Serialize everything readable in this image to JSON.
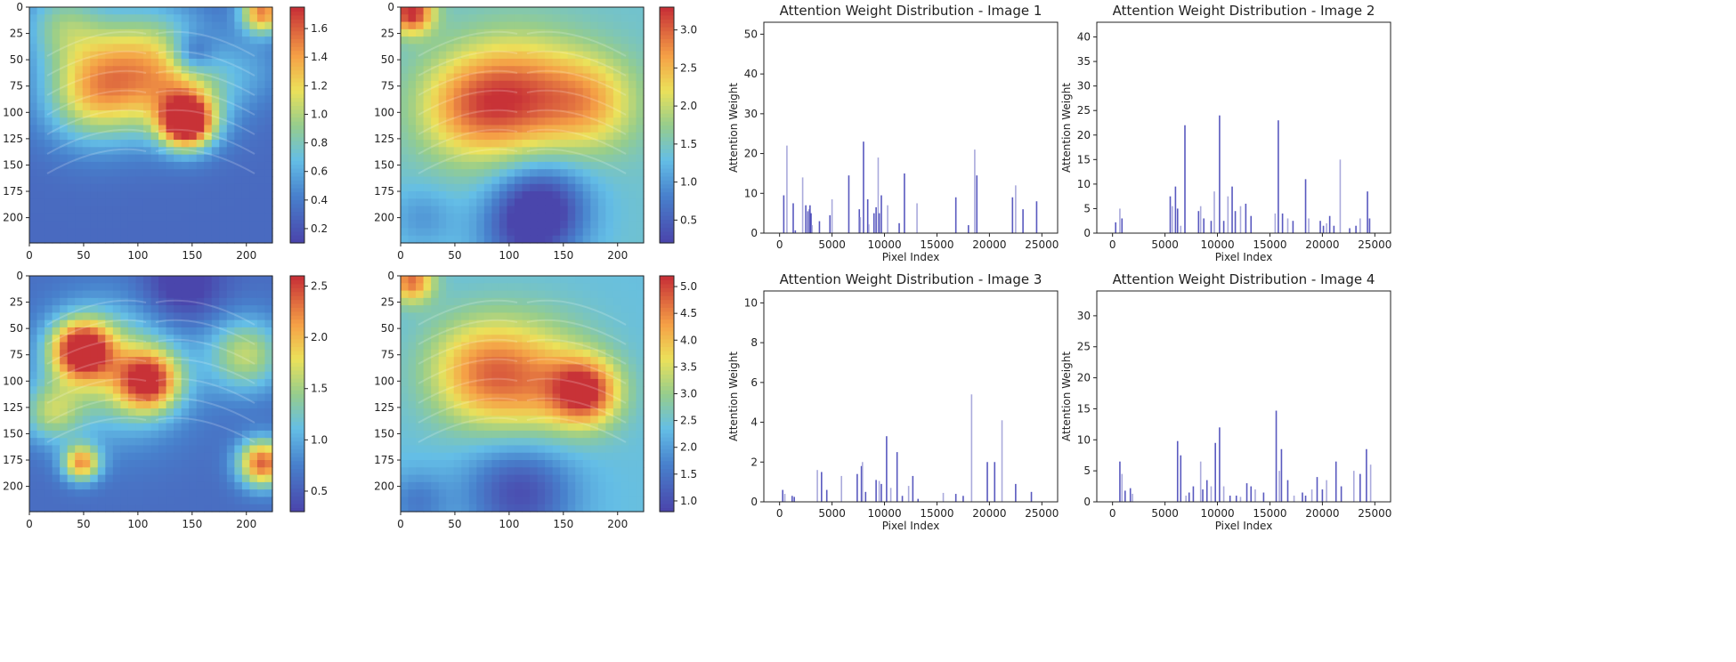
{
  "colors": {
    "cold": "#3b4cc0",
    "mid": "#dddddd",
    "hot": "#b40426",
    "bar_dark": "#3c3cb4",
    "bar_light": "#9b9bd6",
    "axis": "#222222"
  },
  "chart_data": [
    {
      "type": "heatmap",
      "panel": "heatmap-1",
      "xlim": [
        0,
        224
      ],
      "ylim": [
        224,
        0
      ],
      "xticks": [
        0,
        50,
        100,
        150,
        200
      ],
      "yticks": [
        0,
        25,
        50,
        75,
        100,
        125,
        150,
        175,
        200
      ],
      "colorbar": {
        "min": 0.1,
        "max": 1.75,
        "ticks": [
          "0.2",
          "0.4",
          "0.6",
          "0.8",
          "1.0",
          "1.2",
          "1.4",
          "1.6"
        ],
        "tick_values": [
          0.2,
          0.4,
          0.6,
          0.8,
          1.0,
          1.2,
          1.4,
          1.6
        ]
      },
      "base": 0.3,
      "hotspots": [
        {
          "x": 145,
          "y": 110,
          "v": 1.5,
          "s": 17
        },
        {
          "x": 145,
          "y": 85,
          "v": 0.55,
          "s": 30
        },
        {
          "x": 60,
          "y": 80,
          "v": 0.9,
          "s": 34
        },
        {
          "x": 108,
          "y": 50,
          "v": 0.75,
          "s": 38
        },
        {
          "x": 30,
          "y": 15,
          "v": 0.5,
          "s": 26
        },
        {
          "x": 215,
          "y": 5,
          "v": 1.2,
          "s": 14
        },
        {
          "x": 150,
          "y": 45,
          "v": -0.45,
          "s": 14
        },
        {
          "x": 205,
          "y": 60,
          "v": 0.2,
          "s": 24
        }
      ]
    },
    {
      "type": "heatmap",
      "panel": "heatmap-2",
      "xlim": [
        0,
        224
      ],
      "ylim": [
        224,
        0
      ],
      "xticks": [
        0,
        50,
        100,
        150,
        200
      ],
      "yticks": [
        0,
        25,
        50,
        75,
        100,
        125,
        150,
        175,
        200
      ],
      "colorbar": {
        "min": 0.2,
        "max": 3.3,
        "ticks": [
          "0.5",
          "1.0",
          "1.5",
          "2.0",
          "2.5",
          "3.0"
        ],
        "tick_values": [
          0.5,
          1.0,
          1.5,
          2.0,
          2.5,
          3.0
        ]
      },
      "base": 1.4,
      "hotspots": [
        {
          "x": 10,
          "y": 5,
          "v": 2.0,
          "s": 14
        },
        {
          "x": 110,
          "y": 85,
          "v": 1.4,
          "s": 40
        },
        {
          "x": 60,
          "y": 95,
          "v": 1.0,
          "s": 35
        },
        {
          "x": 175,
          "y": 90,
          "v": 1.0,
          "s": 32
        },
        {
          "x": 130,
          "y": 190,
          "v": -1.3,
          "s": 30
        },
        {
          "x": 110,
          "y": 220,
          "v": -0.6,
          "s": 30
        },
        {
          "x": 20,
          "y": 200,
          "v": -0.4,
          "s": 20
        }
      ]
    },
    {
      "type": "heatmap",
      "panel": "heatmap-3",
      "xlim": [
        0,
        224
      ],
      "ylim": [
        224,
        0
      ],
      "xticks": [
        0,
        50,
        100,
        150,
        200
      ],
      "yticks": [
        0,
        25,
        50,
        75,
        100,
        125,
        150,
        175,
        200
      ],
      "colorbar": {
        "min": 0.3,
        "max": 2.6,
        "ticks": [
          "0.5",
          "1.0",
          "1.5",
          "2.0",
          "2.5"
        ],
        "tick_values": [
          0.5,
          1.0,
          1.5,
          2.0,
          2.5
        ]
      },
      "base": 0.6,
      "hotspots": [
        {
          "x": 48,
          "y": 70,
          "v": 1.9,
          "s": 20
        },
        {
          "x": 110,
          "y": 100,
          "v": 1.6,
          "s": 20
        },
        {
          "x": 200,
          "y": 75,
          "v": 1.0,
          "s": 25
        },
        {
          "x": 80,
          "y": 90,
          "v": 0.9,
          "s": 45
        },
        {
          "x": 48,
          "y": 178,
          "v": 1.5,
          "s": 12
        },
        {
          "x": 215,
          "y": 178,
          "v": 1.8,
          "s": 16
        },
        {
          "x": 140,
          "y": 10,
          "v": -0.5,
          "s": 25
        },
        {
          "x": 20,
          "y": 130,
          "v": 0.8,
          "s": 20
        }
      ]
    },
    {
      "type": "heatmap",
      "panel": "heatmap-4",
      "xlim": [
        0,
        224
      ],
      "ylim": [
        224,
        0
      ],
      "xticks": [
        0,
        50,
        100,
        150,
        200
      ],
      "yticks": [
        0,
        25,
        50,
        75,
        100,
        125,
        150,
        175,
        200
      ],
      "colorbar": {
        "min": 0.8,
        "max": 5.2,
        "ticks": [
          "1.0",
          "1.5",
          "2.0",
          "2.5",
          "3.0",
          "3.5",
          "4.0",
          "4.5",
          "5.0"
        ],
        "tick_values": [
          1.0,
          1.5,
          2.0,
          2.5,
          3.0,
          3.5,
          4.0,
          4.5,
          5.0
        ]
      },
      "base": 2.4,
      "hotspots": [
        {
          "x": 170,
          "y": 110,
          "v": 2.6,
          "s": 22
        },
        {
          "x": 120,
          "y": 100,
          "v": 1.6,
          "s": 40
        },
        {
          "x": 70,
          "y": 90,
          "v": 1.5,
          "s": 35
        },
        {
          "x": 10,
          "y": 5,
          "v": 2.3,
          "s": 14
        },
        {
          "x": 110,
          "y": 205,
          "v": -1.5,
          "s": 35
        },
        {
          "x": 15,
          "y": 215,
          "v": -0.8,
          "s": 20
        }
      ]
    },
    {
      "type": "bar",
      "panel": "attention-1",
      "title": "Attention Weight Distribution - Image 1",
      "xlabel": "Pixel Index",
      "ylabel": "Attention Weight",
      "xlim": [
        -1500,
        26500
      ],
      "ylim": [
        0,
        53
      ],
      "xticks": [
        0,
        5000,
        10000,
        15000,
        20000,
        25000
      ],
      "yticks": [
        0,
        10,
        20,
        30,
        40,
        50
      ],
      "bars": [
        [
          400,
          9.5
        ],
        [
          700,
          22
        ],
        [
          1300,
          7.5
        ],
        [
          1500,
          0.7
        ],
        [
          2200,
          14
        ],
        [
          2500,
          7
        ],
        [
          2700,
          5.5
        ],
        [
          2800,
          6
        ],
        [
          2900,
          7
        ],
        [
          3000,
          5
        ],
        [
          3100,
          2
        ],
        [
          3800,
          3
        ],
        [
          4800,
          4.5
        ],
        [
          5000,
          8.5
        ],
        [
          6600,
          14.5
        ],
        [
          7600,
          6
        ],
        [
          7700,
          4
        ],
        [
          8000,
          23
        ],
        [
          8400,
          8.5
        ],
        [
          8500,
          2.2
        ],
        [
          9000,
          5
        ],
        [
          9200,
          6.5
        ],
        [
          9400,
          19
        ],
        [
          9500,
          5
        ],
        [
          9700,
          9.5
        ],
        [
          10300,
          7
        ],
        [
          11400,
          2.5
        ],
        [
          11900,
          15
        ],
        [
          13100,
          7.5
        ],
        [
          16800,
          9
        ],
        [
          18000,
          2
        ],
        [
          18600,
          21
        ],
        [
          18800,
          14.5
        ],
        [
          22200,
          9
        ],
        [
          22500,
          12
        ],
        [
          23200,
          6
        ],
        [
          24500,
          8
        ]
      ]
    },
    {
      "type": "bar",
      "panel": "attention-2",
      "title": "Attention Weight Distribution - Image 2",
      "xlabel": "Pixel Index",
      "ylabel": "Attention Weight",
      "xlim": [
        -1500,
        26500
      ],
      "ylim": [
        0,
        43
      ],
      "xticks": [
        0,
        5000,
        10000,
        15000,
        20000,
        25000
      ],
      "yticks": [
        0,
        5,
        10,
        15,
        20,
        25,
        30,
        35,
        40
      ],
      "bars": [
        [
          300,
          2.2
        ],
        [
          700,
          5
        ],
        [
          900,
          3
        ],
        [
          5500,
          7.5
        ],
        [
          5700,
          5.5
        ],
        [
          6000,
          9.5
        ],
        [
          6200,
          5
        ],
        [
          6500,
          1.5
        ],
        [
          6900,
          22
        ],
        [
          8200,
          4.5
        ],
        [
          8400,
          5.5
        ],
        [
          8700,
          3
        ],
        [
          9400,
          2.5
        ],
        [
          9700,
          8.5
        ],
        [
          10200,
          24
        ],
        [
          10600,
          2.5
        ],
        [
          11000,
          7.5
        ],
        [
          11400,
          9.5
        ],
        [
          11700,
          4.5
        ],
        [
          12200,
          5.5
        ],
        [
          12700,
          6
        ],
        [
          13200,
          3.5
        ],
        [
          15500,
          4
        ],
        [
          15800,
          23
        ],
        [
          16200,
          4
        ],
        [
          16700,
          3
        ],
        [
          17200,
          2.5
        ],
        [
          18400,
          11
        ],
        [
          18700,
          3
        ],
        [
          19800,
          2.5
        ],
        [
          20100,
          1.5
        ],
        [
          20400,
          2
        ],
        [
          20700,
          3.5
        ],
        [
          21100,
          1.5
        ],
        [
          21700,
          15
        ],
        [
          22600,
          1
        ],
        [
          23200,
          1.5
        ],
        [
          23600,
          3
        ],
        [
          24300,
          8.5
        ],
        [
          24500,
          3
        ]
      ]
    },
    {
      "type": "bar",
      "panel": "attention-3",
      "title": "Attention Weight Distribution - Image 3",
      "xlabel": "Pixel Index",
      "ylabel": "Attention Weight",
      "xlim": [
        -1500,
        26500
      ],
      "ylim": [
        0,
        10.6
      ],
      "xticks": [
        0,
        5000,
        10000,
        15000,
        20000,
        25000
      ],
      "yticks": [
        0,
        2,
        4,
        6,
        8,
        10
      ],
      "bars": [
        [
          300,
          0.6
        ],
        [
          500,
          0.4
        ],
        [
          1200,
          0.3
        ],
        [
          1400,
          0.25
        ],
        [
          3600,
          1.6
        ],
        [
          4000,
          1.5
        ],
        [
          4500,
          0.6
        ],
        [
          5900,
          1.3
        ],
        [
          7400,
          1.4
        ],
        [
          7800,
          1.8
        ],
        [
          7900,
          2
        ],
        [
          8200,
          0.5
        ],
        [
          9200,
          1.1
        ],
        [
          9500,
          1.05
        ],
        [
          9700,
          0.9
        ],
        [
          10200,
          3.3
        ],
        [
          10600,
          0.7
        ],
        [
          11200,
          2.5
        ],
        [
          11700,
          0.3
        ],
        [
          12300,
          0.8
        ],
        [
          12700,
          1.3
        ],
        [
          13200,
          0.15
        ],
        [
          15600,
          0.45
        ],
        [
          16800,
          0.4
        ],
        [
          17500,
          0.3
        ],
        [
          18300,
          5.4
        ],
        [
          19800,
          2
        ],
        [
          20500,
          2
        ],
        [
          21200,
          4.1
        ],
        [
          22500,
          0.9
        ],
        [
          24000,
          0.5
        ]
      ]
    },
    {
      "type": "bar",
      "panel": "attention-4",
      "title": "Attention Weight Distribution - Image 4",
      "xlabel": "Pixel Index",
      "ylabel": "Attention Weight",
      "xlim": [
        -1500,
        26500
      ],
      "ylim": [
        0,
        34
      ],
      "xticks": [
        0,
        5000,
        10000,
        15000,
        20000,
        25000
      ],
      "yticks": [
        0,
        5,
        10,
        15,
        20,
        25,
        30
      ],
      "bars": [
        [
          700,
          6.5
        ],
        [
          900,
          4.5
        ],
        [
          1200,
          1.8
        ],
        [
          1700,
          2.2
        ],
        [
          1900,
          1.3
        ],
        [
          6200,
          9.8
        ],
        [
          6500,
          7.5
        ],
        [
          7000,
          1
        ],
        [
          7300,
          1.5
        ],
        [
          7700,
          2.5
        ],
        [
          8400,
          6.5
        ],
        [
          8600,
          2
        ],
        [
          9000,
          3.5
        ],
        [
          9400,
          2.5
        ],
        [
          9800,
          9.5
        ],
        [
          10200,
          12
        ],
        [
          10600,
          2.5
        ],
        [
          11200,
          1
        ],
        [
          11800,
          1
        ],
        [
          12200,
          0.8
        ],
        [
          12800,
          3
        ],
        [
          13200,
          2.5
        ],
        [
          13600,
          2
        ],
        [
          14400,
          1.5
        ],
        [
          15600,
          14.7
        ],
        [
          15900,
          5
        ],
        [
          16100,
          8.5
        ],
        [
          16700,
          3.5
        ],
        [
          17300,
          1
        ],
        [
          18100,
          1.5
        ],
        [
          18400,
          1
        ],
        [
          19000,
          2
        ],
        [
          19500,
          4
        ],
        [
          20000,
          2
        ],
        [
          20400,
          3.5
        ],
        [
          21300,
          6.5
        ],
        [
          21800,
          2.5
        ],
        [
          23000,
          5
        ],
        [
          23600,
          4.5
        ],
        [
          24200,
          8.5
        ],
        [
          24600,
          6
        ]
      ]
    }
  ]
}
